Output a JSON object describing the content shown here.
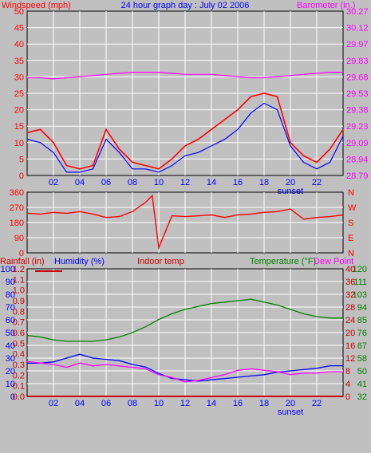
{
  "header": {
    "left_label": "Windspeed (mph)",
    "center_label": "24 hour graph day : July 02 2006",
    "right_label": "Barometer (in.)"
  },
  "colors": {
    "windspeed": "#ff0000",
    "wind_avg": "#0000ff",
    "barometer": "#ff00ff",
    "direction": "#ff0000",
    "temperature": "#008000",
    "humidity": "#0000ff",
    "dewpoint": "#ff00ff",
    "rainfall": "#cc0000",
    "indoor": "#cc0000",
    "axis_text": "#0000ff",
    "panel": "#c0c0c0",
    "grid": "#ffffff"
  },
  "chart_data": [
    {
      "type": "line",
      "panel": "wind_barometer",
      "title": "24 hour graph day : July 02 2006",
      "ylabel": "Windspeed (mph)",
      "ylabel_right": "Barometer (in.)",
      "ylim": [
        0,
        50
      ],
      "yticks": [
        0,
        5,
        10,
        15,
        20,
        25,
        30,
        35,
        40,
        45,
        50
      ],
      "ytick_labels_right": [
        "28.79",
        "28.94",
        "29.09",
        "29.23",
        "29.38",
        "29.53",
        "29.68",
        "29.83",
        "29.97",
        "30.12",
        "30.27"
      ],
      "x_ticks": [
        "02",
        "04",
        "06",
        "08",
        "10",
        "12",
        "14",
        "16",
        "18",
        "20",
        "22"
      ],
      "x_annotation": "sunset",
      "x_hours": [
        0,
        1,
        2,
        3,
        4,
        5,
        6,
        7,
        8,
        9,
        10,
        11,
        12,
        13,
        14,
        15,
        16,
        17,
        18,
        19,
        20,
        21,
        22,
        23,
        24
      ],
      "series": [
        {
          "name": "Windspeed (mph)",
          "values": [
            13,
            14,
            10,
            3,
            2,
            3,
            14,
            8,
            4,
            3,
            2,
            5,
            9,
            11,
            14,
            17,
            20,
            24,
            25,
            24,
            10,
            6,
            4,
            8,
            14
          ]
        },
        {
          "name": "Wind average",
          "values": [
            11,
            10,
            7,
            1,
            1,
            2,
            11,
            7,
            2,
            2,
            1,
            3,
            6,
            7,
            9,
            11,
            14,
            19,
            22,
            20,
            9,
            4,
            2,
            4,
            12
          ]
        },
        {
          "name": "Barometer (in.)",
          "values": [
            29.67,
            29.67,
            29.66,
            29.67,
            29.68,
            29.69,
            29.7,
            29.71,
            29.72,
            29.72,
            29.72,
            29.71,
            29.7,
            29.7,
            29.7,
            29.69,
            29.68,
            29.67,
            29.67,
            29.68,
            29.69,
            29.7,
            29.71,
            29.72,
            29.72
          ]
        }
      ]
    },
    {
      "type": "line",
      "panel": "wind_direction",
      "ylim": [
        0,
        360
      ],
      "yticks": [
        0,
        90,
        180,
        270,
        360
      ],
      "ytick_labels_right": [
        "N",
        "E",
        "S",
        "W",
        "N"
      ],
      "x_hours": [
        0,
        1,
        2,
        3,
        4,
        5,
        6,
        7,
        8,
        9,
        9.5,
        10,
        11,
        12,
        13,
        14,
        15,
        16,
        17,
        18,
        19,
        20,
        21,
        22,
        23,
        24
      ],
      "series": [
        {
          "name": "Wind direction",
          "values": [
            235,
            230,
            240,
            235,
            245,
            230,
            210,
            215,
            245,
            300,
            340,
            30,
            220,
            215,
            220,
            225,
            210,
            225,
            230,
            240,
            245,
            260,
            200,
            210,
            215,
            225
          ]
        }
      ]
    },
    {
      "type": "line",
      "panel": "temp_humidity_rain",
      "legend": [
        "Rainfall (in)",
        "Humidity (%)",
        "Indoor temp",
        "Temperature (°F)",
        "Dew Point"
      ],
      "ylim": [
        0,
        100
      ],
      "yticks_left_rain": [
        "0.0",
        "0.1",
        "0.2",
        "0.3",
        "0.4",
        "0.5",
        "0.6",
        "0.7",
        "0.8",
        "0.9",
        "1.0",
        "1.1",
        "1.2"
      ],
      "yticks_left_humidity": [
        "0",
        "10",
        "20",
        "30",
        "40",
        "50",
        "60",
        "70",
        "80",
        "90",
        "100"
      ],
      "yticks_right_indoor": [
        "0",
        "4",
        "8",
        "12",
        "16",
        "20",
        "24",
        "28",
        "32",
        "36",
        "40"
      ],
      "yticks_right_temp": [
        "32",
        "41",
        "50",
        "58",
        "67",
        "76",
        "85",
        "94",
        "103",
        "111",
        "120"
      ],
      "x_ticks": [
        "02",
        "04",
        "06",
        "08",
        "10",
        "12",
        "14",
        "16",
        "18",
        "20",
        "22"
      ],
      "x_annotation": "sunset",
      "x_hours": [
        0,
        1,
        2,
        3,
        4,
        5,
        6,
        7,
        8,
        9,
        10,
        11,
        12,
        13,
        14,
        15,
        16,
        17,
        18,
        19,
        20,
        21,
        22,
        23,
        24
      ],
      "series": [
        {
          "name": "Temperature (°F)",
          "values": [
            74,
            73,
            71,
            70,
            70,
            70,
            71,
            73,
            76,
            80,
            85,
            89,
            92,
            94,
            96,
            97,
            98,
            99,
            97,
            95,
            92,
            89,
            87,
            86,
            86
          ]
        },
        {
          "name": "Humidity (%)",
          "values": [
            26,
            26,
            27,
            30,
            33,
            30,
            29,
            28,
            25,
            23,
            18,
            14,
            13,
            12,
            13,
            14,
            15,
            16,
            17,
            19,
            20,
            21,
            22,
            24,
            24
          ]
        },
        {
          "name": "Dew Point",
          "values": [
            56,
            55,
            54,
            52,
            55,
            53,
            54,
            53,
            52,
            51,
            47,
            45,
            42,
            43,
            45,
            47,
            50,
            51,
            50,
            49,
            47,
            48,
            48,
            49,
            49
          ]
        },
        {
          "name": "Rainfall (in)",
          "values": [
            0,
            0,
            0,
            0,
            0,
            0,
            0,
            0,
            0,
            0,
            0,
            0,
            0,
            0,
            0,
            0,
            0,
            0,
            0,
            0,
            0,
            0,
            0,
            0,
            0
          ]
        }
      ]
    }
  ]
}
